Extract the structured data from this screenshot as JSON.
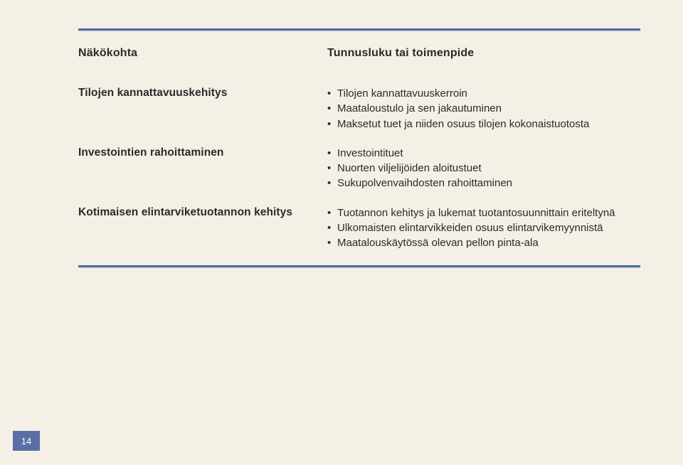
{
  "colors": {
    "page_bg": "#f5f0e6",
    "rule": "#5a6fa8",
    "text": "#2a2a2a",
    "badge_bg": "#5a6fa8",
    "badge_text": "#ffffff"
  },
  "typography": {
    "heading_fontsize_pt": 12,
    "label_fontsize_pt": 11.5,
    "body_fontsize_pt": 11,
    "font_family": "Helvetica Neue, Arial, sans-serif"
  },
  "header": {
    "left": "Näkökohta",
    "right": "Tunnusluku tai toimenpide"
  },
  "rows": [
    {
      "label": "Tilojen kannattavuuskehitys",
      "items": [
        "Tilojen kannattavuuskerroin",
        "Maataloustulo ja sen jakautuminen",
        "Maksetut tuet ja niiden osuus tilojen kokonaistuotosta"
      ]
    },
    {
      "label": "Investointien rahoittaminen",
      "items": [
        "Investointituet",
        "Nuorten viljelijöiden aloitustuet",
        "Sukupolvenvaihdosten rahoittaminen"
      ]
    },
    {
      "label": "Kotimaisen elintarviketuotannon kehitys",
      "items": [
        "Tuotannon kehitys ja lukemat tuotantosuunnittain eriteltynä",
        "Ulkomaisten elintarvikkeiden osuus elintarvikemyynnistä",
        "Maatalouskäytössä olevan pellon pinta-ala"
      ]
    }
  ],
  "page_number": "14"
}
